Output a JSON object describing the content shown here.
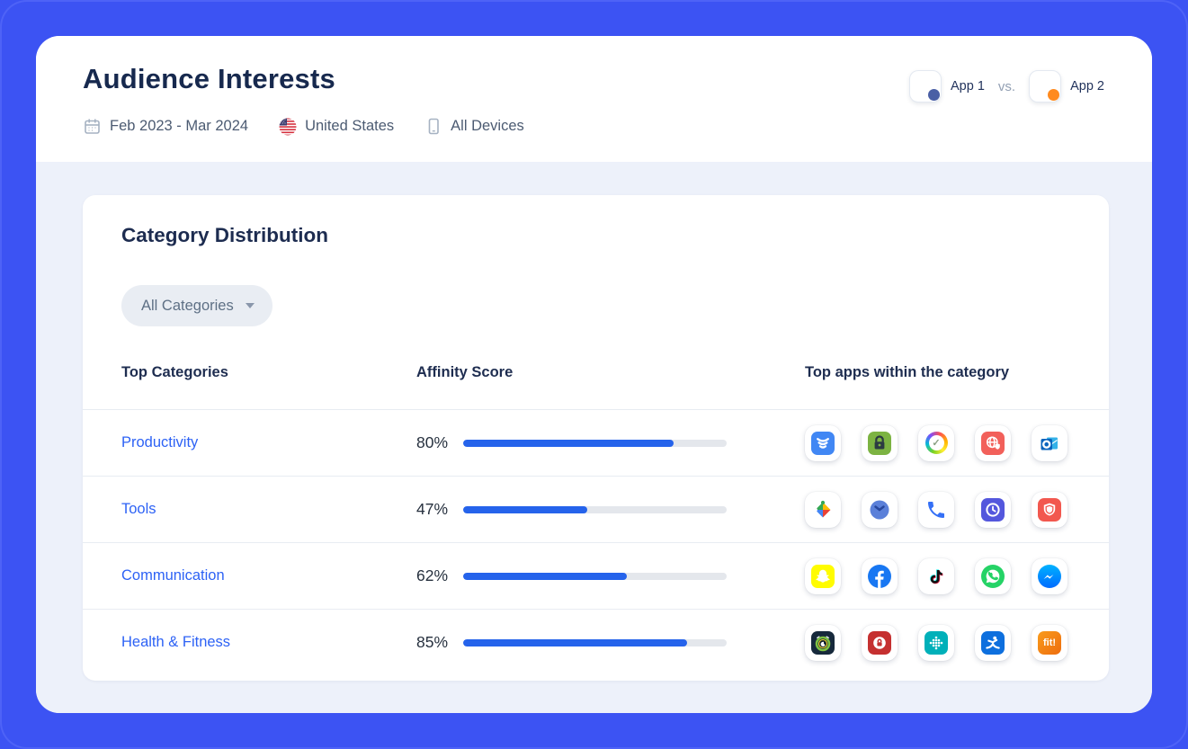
{
  "header": {
    "title": "Audience Interests",
    "filters": [
      {
        "icon": "calendar-icon",
        "label": "Feb 2023 - Mar 2024"
      },
      {
        "icon": "us-flag-icon",
        "label": "United States"
      },
      {
        "icon": "device-icon",
        "label": "All Devices"
      }
    ],
    "comparison": {
      "app1_label": "App 1",
      "vs_label": "vs.",
      "app2_label": "App 2",
      "app1_dot_color": "#4a5fa5",
      "app2_dot_color": "#ff8a1e"
    }
  },
  "card": {
    "title": "Category Distribution",
    "filter_dropdown": {
      "label": "All Categories"
    },
    "table": {
      "headers": [
        "Top Categories",
        "Affinity Score",
        "Top apps within the category"
      ],
      "rows": [
        {
          "category": "Productivity",
          "affinity_pct": "80%",
          "affinity_value": 80,
          "apps": [
            {
              "icon": "shield-stack"
            },
            {
              "icon": "green-padlock"
            },
            {
              "icon": "rainbow-clock-check"
            },
            {
              "icon": "globe-shield"
            },
            {
              "icon": "outlook"
            }
          ]
        },
        {
          "category": "Tools",
          "affinity_pct": "47%",
          "affinity_value": 47,
          "apps": [
            {
              "icon": "play-services"
            },
            {
              "icon": "blue-clock"
            },
            {
              "icon": "phone-dialer"
            },
            {
              "icon": "indigo-clock"
            },
            {
              "icon": "red-shield"
            }
          ]
        },
        {
          "category": "Communication",
          "affinity_pct": "62%",
          "affinity_value": 62,
          "apps": [
            {
              "icon": "snapchat"
            },
            {
              "icon": "facebook"
            },
            {
              "icon": "tiktok"
            },
            {
              "icon": "whatsapp"
            },
            {
              "icon": "messenger"
            }
          ]
        },
        {
          "category": "Health & Fitness",
          "affinity_pct": "85%",
          "affinity_value": 85,
          "apps": [
            {
              "icon": "alarm-rings"
            },
            {
              "icon": "red-lock-circle"
            },
            {
              "icon": "fitbit"
            },
            {
              "icon": "myfitnesspal"
            },
            {
              "icon": "fit-exclaim",
              "label": "fit!"
            }
          ]
        }
      ]
    }
  },
  "colors": {
    "frame_blue": "#3c53f3",
    "section_bg": "#edf1fa",
    "bar_fill": "#2563eb",
    "bar_track": "#e4e7ec",
    "link_blue": "#2d62f5",
    "navy_text": "#1d2c50"
  }
}
